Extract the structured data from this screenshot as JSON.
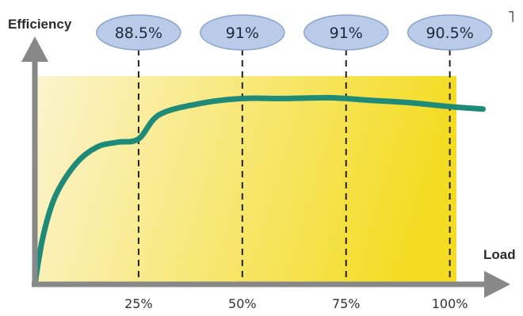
{
  "chart_data": {
    "type": "line",
    "title": "",
    "xlabel": "Load",
    "ylabel": "Efficiency",
    "x_ticks": [
      {
        "x": 25,
        "label": "25%"
      },
      {
        "x": 50,
        "label": "50%"
      },
      {
        "x": 75,
        "label": "75%"
      },
      {
        "x": 100,
        "label": "100%"
      }
    ],
    "annotations": [
      {
        "x": 25,
        "label": "88.5%"
      },
      {
        "x": 50,
        "label": "91%"
      },
      {
        "x": 75,
        "label": "91%"
      },
      {
        "x": 100,
        "label": "90.5%"
      }
    ],
    "series": [
      {
        "x": [
          0,
          2,
          5,
          10,
          15,
          20,
          25,
          30,
          40,
          50,
          60,
          70,
          75,
          80,
          90,
          100,
          108
        ],
        "y": [
          79.5,
          82.5,
          85.0,
          87.0,
          88.0,
          88.3,
          88.5,
          90.0,
          90.7,
          91.0,
          91.0,
          91.05,
          91.0,
          90.9,
          90.75,
          90.5,
          90.35
        ]
      }
    ],
    "xlim": [
      0,
      110
    ],
    "ylim": [
      79.5,
      92
    ],
    "grid": false,
    "colors": {
      "line": "#1e8a78",
      "bubble_fill": "#b9cbe8",
      "bubble_stroke": "#8aa4cc",
      "axis": "#888888",
      "dash": "#222222",
      "fill_light": "#fbf4cf",
      "fill_dark": "#f4dc22"
    },
    "corner_mark": "˥"
  }
}
